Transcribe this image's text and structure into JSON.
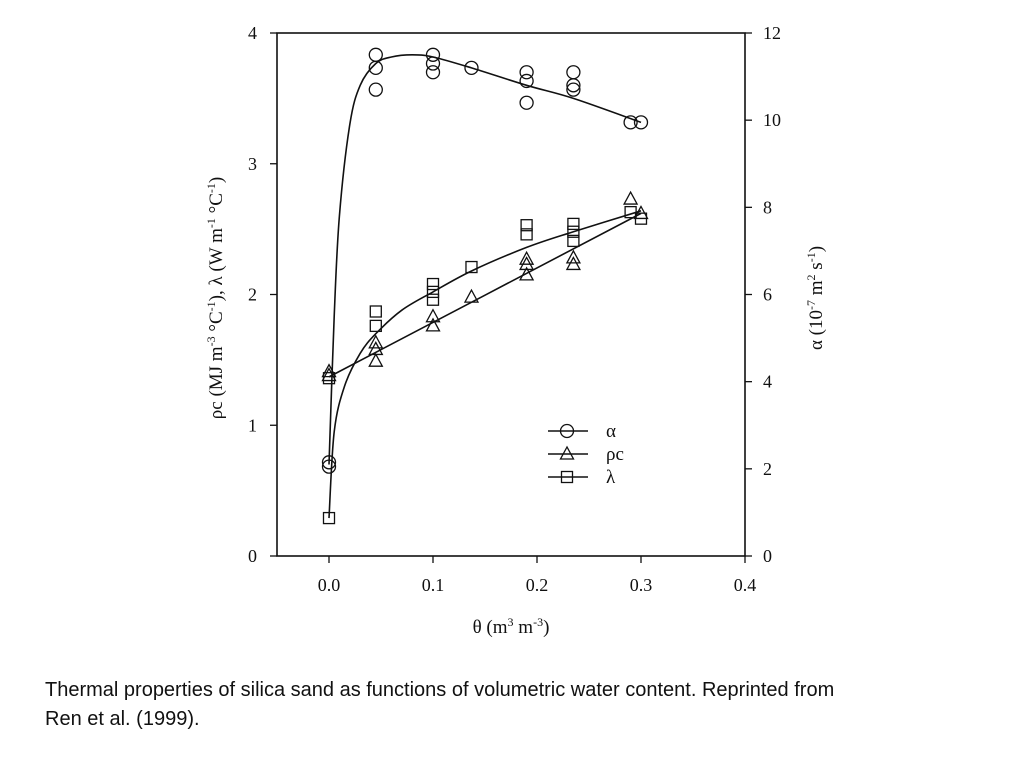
{
  "caption": {
    "line1": "Thermal properties of silica sand as functions of volumetric water content.  Reprinted from",
    "line2": "Ren et al. (1999)."
  },
  "chart_data": {
    "type": "scatter",
    "title": "",
    "xlabel": "θ (m³ m⁻³)",
    "ylabel_left": "ρc (MJ m⁻³ °C⁻¹), λ (W m⁻¹ °C⁻¹)",
    "ylabel_right": "α (10⁻⁷ m² s⁻¹)",
    "xlim": [
      -0.05,
      0.4
    ],
    "ylim_left": [
      0,
      4
    ],
    "ylim_right": [
      0,
      12
    ],
    "xticks": [
      "0.0",
      "0.1",
      "0.2",
      "0.3",
      "0.4"
    ],
    "xtick_values": [
      0.0,
      0.1,
      0.2,
      0.3,
      0.4
    ],
    "yticks_left": [
      "0",
      "1",
      "2",
      "3",
      "4"
    ],
    "yticks_right": [
      "0",
      "2",
      "4",
      "6",
      "8",
      "10",
      "12"
    ],
    "grid": false,
    "legend": {
      "position": "lower right (inside)",
      "entries": [
        {
          "label": "α",
          "marker": "circle"
        },
        {
          "label": "ρc",
          "marker": "triangle"
        },
        {
          "label": "λ",
          "marker": "square"
        }
      ]
    },
    "series": [
      {
        "name": "α",
        "axis": "right",
        "marker": "circle",
        "points": [
          [
            0.0,
            2.05
          ],
          [
            0.0,
            2.15
          ],
          [
            0.045,
            11.5
          ],
          [
            0.045,
            11.2
          ],
          [
            0.045,
            10.7
          ],
          [
            0.1,
            11.5
          ],
          [
            0.1,
            11.3
          ],
          [
            0.1,
            11.1
          ],
          [
            0.137,
            11.2
          ],
          [
            0.19,
            11.1
          ],
          [
            0.19,
            10.9
          ],
          [
            0.19,
            10.4
          ],
          [
            0.235,
            11.1
          ],
          [
            0.235,
            10.8
          ],
          [
            0.235,
            10.7
          ],
          [
            0.29,
            9.95
          ],
          [
            0.3,
            9.95
          ]
        ],
        "fit_curve": [
          [
            0.0,
            2.1
          ],
          [
            0.005,
            5.5
          ],
          [
            0.01,
            7.8
          ],
          [
            0.02,
            9.9
          ],
          [
            0.03,
            10.8
          ],
          [
            0.045,
            11.3
          ],
          [
            0.06,
            11.45
          ],
          [
            0.08,
            11.5
          ],
          [
            0.1,
            11.45
          ],
          [
            0.137,
            11.2
          ],
          [
            0.19,
            10.8
          ],
          [
            0.235,
            10.5
          ],
          [
            0.3,
            9.95
          ]
        ]
      },
      {
        "name": "ρc",
        "axis": "left",
        "marker": "triangle",
        "points": [
          [
            0.0,
            1.41
          ],
          [
            0.0,
            1.38
          ],
          [
            0.045,
            1.63
          ],
          [
            0.045,
            1.58
          ],
          [
            0.045,
            1.49
          ],
          [
            0.1,
            1.83
          ],
          [
            0.1,
            1.76
          ],
          [
            0.137,
            1.98
          ],
          [
            0.19,
            2.27
          ],
          [
            0.19,
            2.23
          ],
          [
            0.19,
            2.15
          ],
          [
            0.235,
            2.28
          ],
          [
            0.235,
            2.23
          ],
          [
            0.29,
            2.73
          ],
          [
            0.3,
            2.62
          ]
        ],
        "fit_line": [
          [
            0.0,
            1.37
          ],
          [
            0.3,
            2.62
          ]
        ]
      },
      {
        "name": "λ",
        "axis": "left",
        "marker": "square",
        "points": [
          [
            0.0,
            0.29
          ],
          [
            0.0,
            1.36
          ],
          [
            0.045,
            1.87
          ],
          [
            0.045,
            1.76
          ],
          [
            0.1,
            2.08
          ],
          [
            0.1,
            2.02
          ],
          [
            0.1,
            1.96
          ],
          [
            0.137,
            2.21
          ],
          [
            0.19,
            2.53
          ],
          [
            0.19,
            2.46
          ],
          [
            0.235,
            2.54
          ],
          [
            0.235,
            2.48
          ],
          [
            0.235,
            2.41
          ],
          [
            0.29,
            2.63
          ],
          [
            0.3,
            2.58
          ]
        ],
        "fit_curve": [
          [
            0.0,
            0.29
          ],
          [
            0.005,
            0.95
          ],
          [
            0.015,
            1.3
          ],
          [
            0.03,
            1.55
          ],
          [
            0.045,
            1.7
          ],
          [
            0.07,
            1.88
          ],
          [
            0.1,
            2.02
          ],
          [
            0.137,
            2.18
          ],
          [
            0.19,
            2.36
          ],
          [
            0.235,
            2.48
          ],
          [
            0.3,
            2.64
          ]
        ]
      }
    ]
  }
}
